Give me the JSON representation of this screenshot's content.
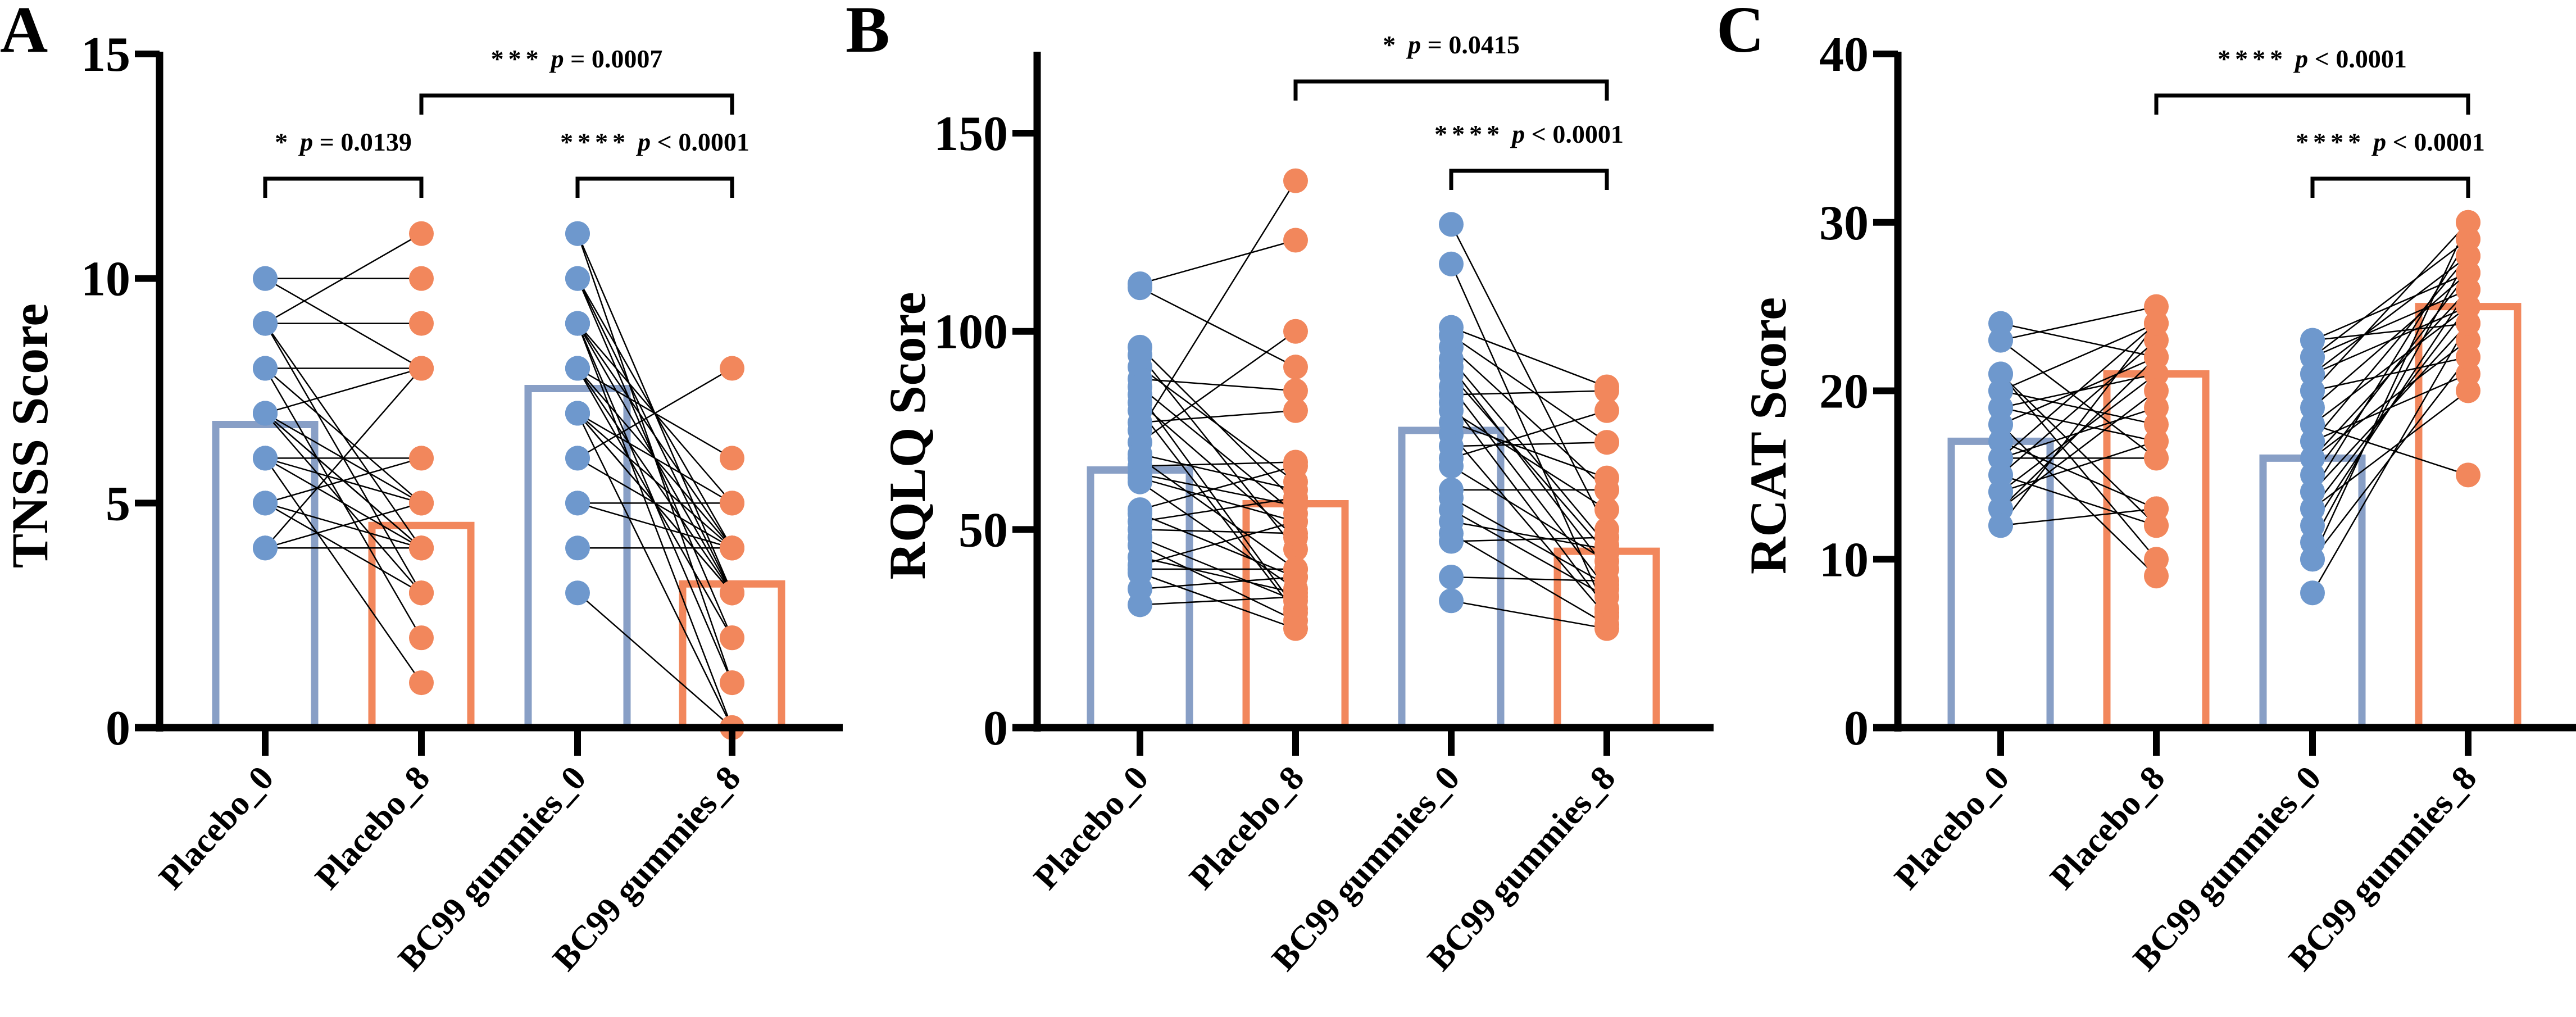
{
  "colors": {
    "blue_point": "#6e98cd",
    "blue_bar": "#889fc6",
    "orange": "#f2875c",
    "axis": "#000000"
  },
  "chart_data": [
    {
      "type": "bar",
      "panel_letter": "A",
      "ylabel": "TNSS Score",
      "ylim": [
        0,
        15
      ],
      "yticks": [
        0,
        5,
        10,
        15
      ],
      "categories": [
        "Placebo_0",
        "Placebo_8",
        "BC99 gummies_0",
        "BC99 gummies_8"
      ],
      "bar_means": [
        6.75,
        4.5,
        7.55,
        3.2
      ],
      "paired_points": [
        {
          "from": 0,
          "to": 1,
          "pairs": [
            [
              10,
              10
            ],
            [
              10,
              8
            ],
            [
              9,
              11
            ],
            [
              9,
              9
            ],
            [
              9,
              4
            ],
            [
              9,
              3
            ],
            [
              8,
              8
            ],
            [
              8,
              5
            ],
            [
              8,
              2
            ],
            [
              7,
              8
            ],
            [
              7,
              5
            ],
            [
              7,
              4
            ],
            [
              7,
              4
            ],
            [
              7,
              3
            ],
            [
              6,
              6
            ],
            [
              6,
              5
            ],
            [
              6,
              4
            ],
            [
              6,
              1
            ],
            [
              5,
              4
            ],
            [
              5,
              6
            ],
            [
              5,
              3
            ],
            [
              4,
              8
            ],
            [
              4,
              5
            ],
            [
              4,
              4
            ]
          ]
        },
        {
          "from": 2,
          "to": 3,
          "pairs": [
            [
              11,
              1
            ],
            [
              11,
              3
            ],
            [
              10,
              4
            ],
            [
              10,
              3
            ],
            [
              10,
              2
            ],
            [
              9,
              5
            ],
            [
              9,
              4
            ],
            [
              9,
              3
            ],
            [
              9,
              1
            ],
            [
              9,
              0
            ],
            [
              8,
              6
            ],
            [
              8,
              4
            ],
            [
              8,
              3
            ],
            [
              8,
              2
            ],
            [
              7,
              5
            ],
            [
              7,
              4
            ],
            [
              7,
              3
            ],
            [
              7,
              3
            ],
            [
              7,
              0
            ],
            [
              6,
              8
            ],
            [
              6,
              4
            ],
            [
              5,
              5
            ],
            [
              5,
              4
            ],
            [
              4,
              4
            ],
            [
              3,
              0
            ]
          ]
        }
      ],
      "comparisons": [
        {
          "from": 0,
          "to": 1,
          "level": 1,
          "stars": "*",
          "p_label": "p",
          "p_text": " = 0.0139"
        },
        {
          "from": 1,
          "to": 3,
          "level": 2,
          "stars": "***",
          "p_label": "p",
          "p_text": " = 0.0007"
        },
        {
          "from": 2,
          "to": 3,
          "level": 1,
          "stars": "****",
          "p_label": "p",
          "p_text": " < 0.0001"
        }
      ]
    },
    {
      "type": "bar",
      "panel_letter": "B",
      "ylabel": "RQLQ Score",
      "ylim": [
        0,
        170
      ],
      "yticks": [
        0,
        50,
        100,
        150
      ],
      "categories": [
        "Placebo_0",
        "Placebo_8",
        "BC99 gummies_0",
        "BC99 gummies_8"
      ],
      "bar_means": [
        65,
        56.5,
        75,
        44.5
      ],
      "paired_points": [
        {
          "from": 0,
          "to": 1,
          "pairs": [
            [
              112,
              123
            ],
            [
              111,
              91
            ],
            [
              96,
              57
            ],
            [
              94,
              45
            ],
            [
              91,
              62
            ],
            [
              88,
              85
            ],
            [
              86,
              54
            ],
            [
              84,
              30
            ],
            [
              82,
              48
            ],
            [
              80,
              29
            ],
            [
              77,
              80
            ],
            [
              75,
              138
            ],
            [
              72,
              100
            ],
            [
              69,
              60
            ],
            [
              68,
              40
            ],
            [
              66,
              67
            ],
            [
              64,
              56
            ],
            [
              63,
              52
            ],
            [
              62,
              35
            ],
            [
              55,
              66
            ],
            [
              54,
              38
            ],
            [
              52,
              58
            ],
            [
              50,
              49
            ],
            [
              48,
              32
            ],
            [
              46,
              27
            ],
            [
              43,
              34
            ],
            [
              41,
              52
            ],
            [
              40,
              40
            ],
            [
              39,
              25
            ],
            [
              35,
              38
            ],
            [
              31,
              33
            ]
          ]
        },
        {
          "from": 2,
          "to": 3,
          "pairs": [
            [
              127,
              50
            ],
            [
              117,
              29
            ],
            [
              101,
              86
            ],
            [
              99,
              72
            ],
            [
              96,
              60
            ],
            [
              93,
              46
            ],
            [
              91,
              40
            ],
            [
              89,
              44
            ],
            [
              86,
              35
            ],
            [
              84,
              85
            ],
            [
              82,
              30
            ],
            [
              80,
              55
            ],
            [
              77,
              63
            ],
            [
              74,
              28
            ],
            [
              71,
              72
            ],
            [
              68,
              80
            ],
            [
              66,
              42
            ],
            [
              60,
              60
            ],
            [
              58,
              36
            ],
            [
              55,
              33
            ],
            [
              52,
              45
            ],
            [
              49,
              26
            ],
            [
              47,
              48
            ],
            [
              38,
              37
            ],
            [
              32,
              25
            ]
          ]
        }
      ],
      "comparisons": [
        {
          "from": 1,
          "to": 3,
          "level": 2,
          "stars": "*",
          "p_label": "p",
          "p_text": " = 0.0415"
        },
        {
          "from": 2,
          "to": 3,
          "level": 1,
          "stars": "****",
          "p_label": "p",
          "p_text": " < 0.0001"
        }
      ]
    },
    {
      "type": "bar",
      "panel_letter": "C",
      "ylabel": "RCAT Score",
      "ylim": [
        0,
        40
      ],
      "yticks": [
        0,
        10,
        20,
        30,
        40
      ],
      "categories": [
        "Placebo_0",
        "Placebo_8",
        "BC99 gummies_0",
        "BC99 gummies_8"
      ],
      "bar_means": [
        17,
        21,
        16,
        25
      ],
      "paired_points": [
        {
          "from": 0,
          "to": 1,
          "pairs": [
            [
              24,
              22
            ],
            [
              23,
              25
            ],
            [
              23,
              16
            ],
            [
              21,
              12
            ],
            [
              21,
              10
            ],
            [
              20,
              24
            ],
            [
              20,
              18
            ],
            [
              19,
              21
            ],
            [
              19,
              17
            ],
            [
              18,
              9
            ],
            [
              18,
              22
            ],
            [
              17,
              13
            ],
            [
              16,
              24
            ],
            [
              16,
              16
            ],
            [
              16,
              19
            ],
            [
              15,
              23
            ],
            [
              15,
              12
            ],
            [
              14,
              21
            ],
            [
              14,
              17
            ],
            [
              13,
              22
            ],
            [
              13,
              20
            ],
            [
              12,
              13
            ],
            [
              12,
              24
            ]
          ]
        },
        {
          "from": 2,
          "to": 3,
          "pairs": [
            [
              23,
              27
            ],
            [
              23,
              24
            ],
            [
              22,
              29
            ],
            [
              22,
              26
            ],
            [
              21,
              25
            ],
            [
              21,
              28
            ],
            [
              20,
              30
            ],
            [
              20,
              22
            ],
            [
              19,
              27
            ],
            [
              18,
              25
            ],
            [
              18,
              15
            ],
            [
              17,
              28
            ],
            [
              17,
              21
            ],
            [
              16,
              26
            ],
            [
              16,
              23
            ],
            [
              15,
              27
            ],
            [
              14,
              29
            ],
            [
              14,
              24
            ],
            [
              13,
              25
            ],
            [
              13,
              20
            ],
            [
              12,
              26
            ],
            [
              11,
              28
            ],
            [
              10,
              22
            ],
            [
              10,
              30
            ],
            [
              8,
              24
            ]
          ]
        }
      ],
      "comparisons": [
        {
          "from": 1,
          "to": 3,
          "level": 2,
          "stars": "****",
          "p_label": "p",
          "p_text": " < 0.0001"
        },
        {
          "from": 2,
          "to": 3,
          "level": 1,
          "stars": "****",
          "p_label": "p",
          "p_text": " < 0.0001"
        }
      ]
    }
  ]
}
